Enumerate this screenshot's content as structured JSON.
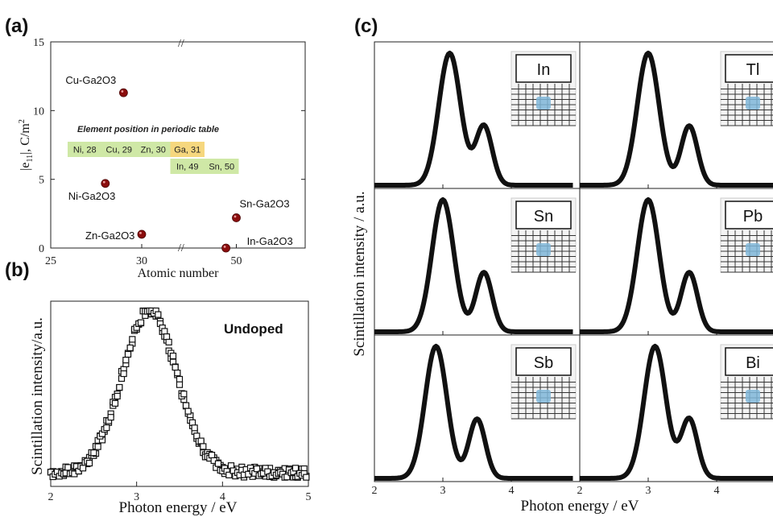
{
  "colors": {
    "marker_a": "#8b0d0d",
    "cell_green": "#cfe8a6",
    "cell_orange": "#f6d77e",
    "curve": "#111111"
  },
  "panels": {
    "a": {
      "label": "(a)",
      "break_mark": "//",
      "table": {
        "title": "Element position in periodic table",
        "cells": [
          {
            "text": "Ni, 28",
            "row": 0,
            "col": 0,
            "color": "green"
          },
          {
            "text": "Cu, 29",
            "row": 0,
            "col": 1,
            "color": "green"
          },
          {
            "text": "Zn, 30",
            "row": 0,
            "col": 2,
            "color": "green"
          },
          {
            "text": "Ga, 31",
            "row": 0,
            "col": 3,
            "color": "orange"
          },
          {
            "text": "In, 49",
            "row": 1,
            "col": 3,
            "color": "green"
          },
          {
            "text": "Sn, 50",
            "row": 1,
            "col": 4,
            "color": "green"
          }
        ]
      }
    },
    "b": {
      "label": "(b)",
      "annotation": "Undoped"
    },
    "c": {
      "label": "(c)",
      "ylabel": "Scintillation intensity / a.u.",
      "xlabel": "Photon energy / eV",
      "x_ticks": [
        "2",
        "3",
        "4",
        "2",
        "3",
        "4"
      ]
    }
  },
  "chart_data": [
    {
      "type": "scatter",
      "panel": "a",
      "xlabel": "Atomic number",
      "ylabel": "|e11|, C/m2",
      "x_ticks": [
        "25",
        "30",
        "50"
      ],
      "y_ticks": [
        "0",
        "5",
        "10",
        "15"
      ],
      "ylim": [
        0,
        15
      ],
      "x_axis_break": "between 31 and 45",
      "grid": false,
      "points": [
        {
          "label": "Cu-Ga2O3",
          "x": 29,
          "y": 11.3
        },
        {
          "label": "Ni-Ga2O3",
          "x": 28,
          "y": 4.7
        },
        {
          "label": "Zn-Ga2O3",
          "x": 30,
          "y": 1.0
        },
        {
          "label": "In-Ga2O3",
          "x": 49,
          "y": 0.0
        },
        {
          "label": "Sn-Ga2O3",
          "x": 50,
          "y": 2.2
        }
      ]
    },
    {
      "type": "scatter",
      "panel": "b",
      "xlabel": "Photon energy / eV",
      "ylabel": "Scintillation intensity/a.u.",
      "xlim": [
        2,
        5
      ],
      "x_ticks": [
        "2",
        "3",
        "4",
        "5"
      ],
      "series": [
        {
          "name": "Undoped",
          "peak_eV": 3.15,
          "fwhm_eV": 0.75,
          "baseline": 0.08
        }
      ]
    },
    {
      "type": "line",
      "panel": "c",
      "xlabel": "Photon energy / eV",
      "ylabel": "Scintillation intensity / a.u.",
      "xlim": [
        2,
        4.5
      ],
      "subplots": [
        {
          "name": "In",
          "peak_eV": 3.1,
          "shoulder_eV": 3.6
        },
        {
          "name": "Tl",
          "peak_eV": 3.0,
          "shoulder_eV": 3.6
        },
        {
          "name": "Sn",
          "peak_eV": 3.0,
          "shoulder_eV": 3.6
        },
        {
          "name": "Pb",
          "peak_eV": 3.0,
          "shoulder_eV": 3.6
        },
        {
          "name": "Sb",
          "peak_eV": 2.9,
          "shoulder_eV": 3.5
        },
        {
          "name": "Bi",
          "peak_eV": 3.1,
          "shoulder_eV": 3.6
        }
      ]
    }
  ]
}
